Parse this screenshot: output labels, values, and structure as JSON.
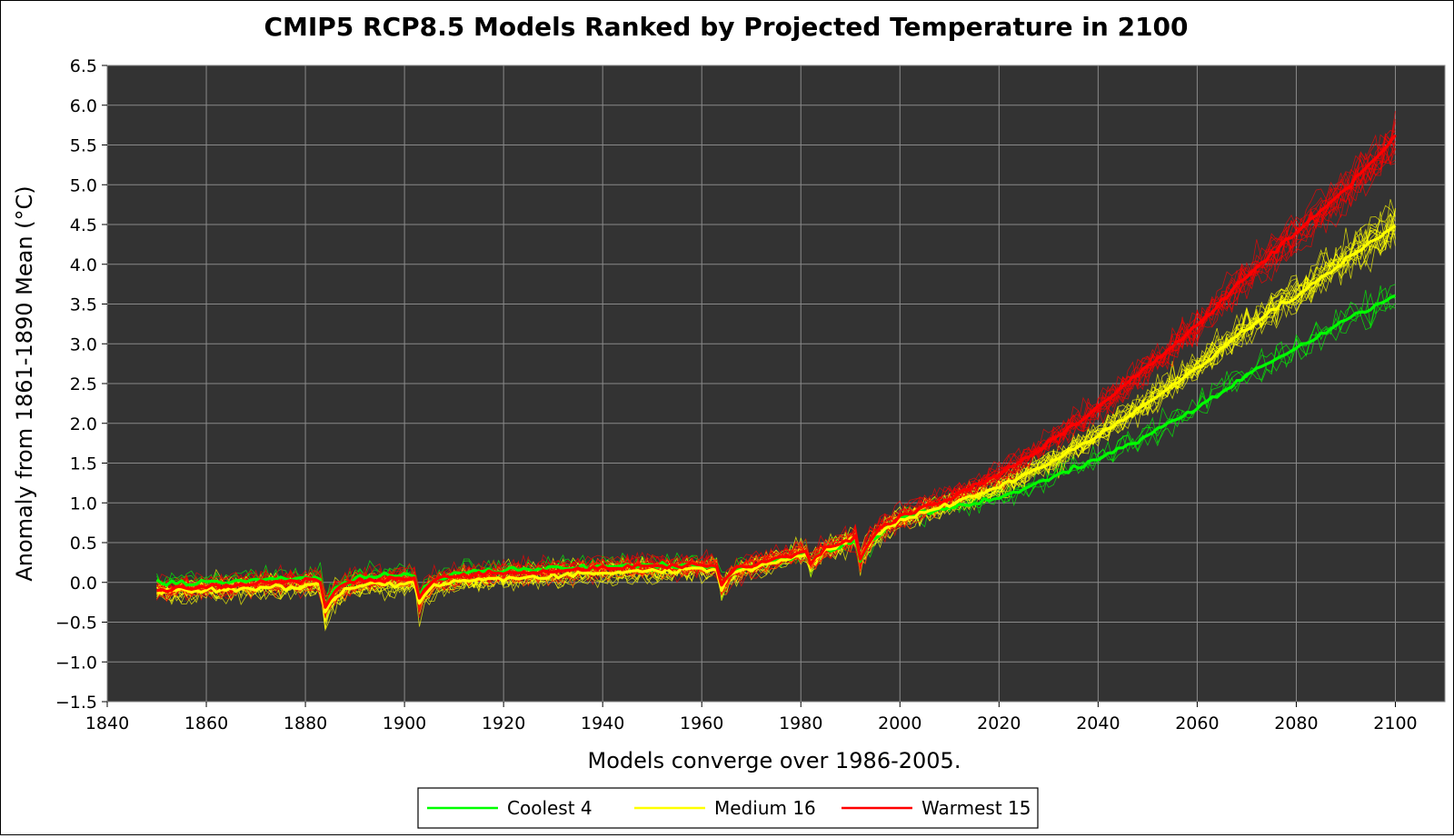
{
  "chart_data": {
    "type": "line",
    "title": "CMIP5 RCP8.5 Models Ranked by Projected Temperature in 2100",
    "xlabel": "Models converge over 1986-2005.",
    "ylabel": "Anomaly from 1861-1890 Mean (°C)",
    "xlim": [
      1840,
      2110
    ],
    "ylim": [
      -1.5,
      6.5
    ],
    "x_ticks": [
      1840,
      1860,
      1880,
      1900,
      1920,
      1940,
      1960,
      1980,
      2000,
      2020,
      2040,
      2060,
      2080,
      2100
    ],
    "y_ticks": [
      -1.5,
      -1.0,
      -0.5,
      0.0,
      0.5,
      1.0,
      1.5,
      2.0,
      2.5,
      3.0,
      3.5,
      4.0,
      4.5,
      5.0,
      5.5,
      6.0,
      6.5
    ],
    "y_tick_labels": [
      "−1.5",
      "−1.0",
      "−0.5",
      "0.0",
      "0.5",
      "1.0",
      "1.5",
      "2.0",
      "2.5",
      "3.0",
      "3.5",
      "4.0",
      "4.5",
      "5.0",
      "5.5",
      "6.0",
      "6.5"
    ],
    "grid": true,
    "legend_position": "bottom-center",
    "volcanic_dips": [
      {
        "year": 1884,
        "depth": 0.35
      },
      {
        "year": 1903,
        "depth": 0.25
      },
      {
        "year": 1964,
        "depth": 0.25
      },
      {
        "year": 1982,
        "depth": 0.15
      },
      {
        "year": 1992,
        "depth": 0.3
      }
    ],
    "series": [
      {
        "name": "Coolest 4",
        "color": "#00ff00",
        "model_count": 4,
        "mean_x": [
          1850,
          1860,
          1880,
          1884,
          1900,
          1920,
          1940,
          1960,
          1970,
          1980,
          1990,
          2000,
          2010,
          2020,
          2030,
          2040,
          2050,
          2060,
          2070,
          2080,
          2090,
          2100
        ],
        "mean_y": [
          0.0,
          0.0,
          0.05,
          0.05,
          0.08,
          0.15,
          0.2,
          0.22,
          0.2,
          0.35,
          0.5,
          0.8,
          0.95,
          1.05,
          1.3,
          1.55,
          1.85,
          2.2,
          2.6,
          2.95,
          3.3,
          3.62
        ]
      },
      {
        "name": "Medium 16",
        "color": "#ffff00",
        "model_count": 16,
        "mean_x": [
          1850,
          1860,
          1880,
          1884,
          1900,
          1920,
          1940,
          1960,
          1970,
          1980,
          1990,
          2000,
          2010,
          2020,
          2030,
          2040,
          2050,
          2060,
          2070,
          2080,
          2090,
          2100
        ],
        "mean_y": [
          -0.12,
          -0.1,
          -0.05,
          -0.05,
          -0.02,
          0.05,
          0.12,
          0.17,
          0.2,
          0.35,
          0.52,
          0.78,
          0.98,
          1.2,
          1.5,
          1.85,
          2.25,
          2.7,
          3.2,
          3.6,
          4.05,
          4.48
        ]
      },
      {
        "name": "Warmest 15",
        "color": "#ff0000",
        "model_count": 15,
        "mean_x": [
          1850,
          1860,
          1880,
          1884,
          1900,
          1920,
          1940,
          1960,
          1970,
          1980,
          1990,
          2000,
          2010,
          2020,
          2030,
          2040,
          2050,
          2060,
          2070,
          2080,
          2090,
          2100
        ],
        "mean_y": [
          -0.1,
          -0.05,
          0.02,
          0.02,
          0.05,
          0.12,
          0.18,
          0.22,
          0.22,
          0.37,
          0.55,
          0.82,
          1.05,
          1.35,
          1.75,
          2.2,
          2.7,
          3.25,
          3.85,
          4.4,
          4.95,
          5.6
        ]
      }
    ]
  }
}
